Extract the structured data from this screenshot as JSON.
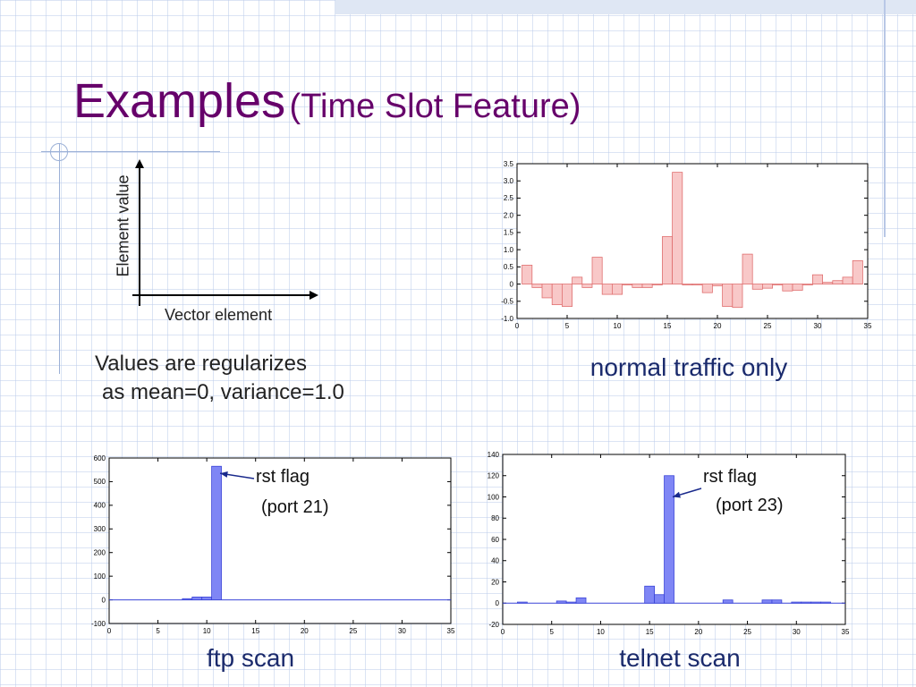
{
  "title": {
    "main": "Examples",
    "sub": "(Time Slot Feature)"
  },
  "concept": {
    "y_axis_label": "Element value",
    "x_axis_label": "Vector element",
    "note_line1": "Values are regularizes",
    "note_line2": "as mean=0, variance=1.0"
  },
  "colors": {
    "title": "#66006a",
    "caption": "#1a2a6c",
    "normal_bar": "#f8c8c8",
    "normal_edge": "#e07070",
    "scan_bar": "#7f86f5",
    "scan_edge": "#3a44d8"
  },
  "chart_data": [
    {
      "id": "normal",
      "type": "bar",
      "caption": "normal traffic only",
      "x": [
        1,
        2,
        3,
        4,
        5,
        6,
        7,
        8,
        9,
        10,
        11,
        12,
        13,
        14,
        15,
        16,
        17,
        18,
        19,
        20,
        21,
        22,
        23,
        24,
        25,
        26,
        27,
        28,
        29,
        30,
        31,
        32,
        33,
        34
      ],
      "values": [
        0.55,
        -0.1,
        -0.4,
        -0.6,
        -0.65,
        0.2,
        -0.1,
        0.78,
        -0.3,
        -0.3,
        0,
        -0.1,
        -0.1,
        0,
        1.38,
        3.25,
        0,
        0,
        -0.25,
        -0.05,
        -0.65,
        -0.68,
        0.87,
        -0.15,
        -0.12,
        0,
        -0.2,
        -0.18,
        0,
        0.27,
        0.05,
        0.1,
        0.2,
        0.68
      ],
      "xlim": [
        0,
        35
      ],
      "ylim": [
        -1,
        3.5
      ],
      "xticks": [
        0,
        5,
        10,
        15,
        20,
        25,
        30,
        35
      ],
      "yticks": [
        -1,
        -0.5,
        0,
        0.5,
        1,
        1.5,
        2,
        2.5,
        3,
        3.5
      ],
      "yticklabels": [
        "-1.0",
        "-0.5",
        "0",
        "0.5",
        "1.0",
        "1.5",
        "2.0",
        "2.5",
        "3.0",
        "3.5"
      ]
    },
    {
      "id": "ftp",
      "type": "bar",
      "caption": "ftp scan",
      "x": [
        8,
        9,
        10,
        11
      ],
      "values": [
        5,
        12,
        12,
        565
      ],
      "xlim": [
        0,
        35
      ],
      "ylim": [
        -100,
        600
      ],
      "xticks": [
        0,
        5,
        10,
        15,
        20,
        25,
        30,
        35
      ],
      "yticks": [
        -100,
        0,
        100,
        200,
        300,
        400,
        500,
        600
      ],
      "yticklabels": [
        "-100",
        "0",
        "100",
        "200",
        "300",
        "400",
        "500",
        "600"
      ],
      "annotation": {
        "line1": "rst flag",
        "line2": "(port 21)",
        "target_x": 11,
        "target_y": 535
      }
    },
    {
      "id": "telnet",
      "type": "bar",
      "caption": "telnet scan",
      "x": [
        2,
        6,
        7,
        8,
        15,
        16,
        17,
        23,
        27,
        28,
        30,
        31,
        32,
        33
      ],
      "values": [
        1,
        2,
        1,
        5,
        16,
        8,
        120,
        3,
        3,
        3,
        1,
        1,
        1,
        1
      ],
      "xlim": [
        0,
        35
      ],
      "ylim": [
        -20,
        140
      ],
      "xticks": [
        0,
        5,
        10,
        15,
        20,
        25,
        30,
        35
      ],
      "yticks": [
        -20,
        0,
        20,
        40,
        60,
        80,
        100,
        120,
        140
      ],
      "yticklabels": [
        "-20",
        "0",
        "20",
        "40",
        "60",
        "80",
        "100",
        "120",
        "140"
      ],
      "annotation": {
        "line1": "rst flag",
        "line2": "(port 23)",
        "target_x": 17,
        "target_y": 100
      }
    }
  ]
}
